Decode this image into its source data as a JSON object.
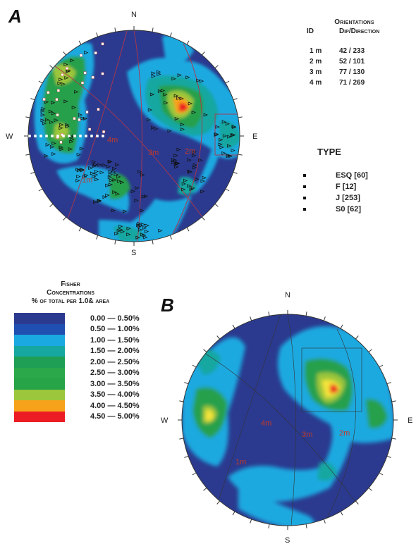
{
  "panels": [
    {
      "label": "A",
      "cardinals": {
        "n": "N",
        "e": "E",
        "s": "S",
        "w": "W"
      },
      "plane_labels": [
        "1m",
        "2m",
        "3m",
        "4m"
      ]
    },
    {
      "label": "B",
      "cardinals": {
        "n": "N",
        "e": "E",
        "s": "S",
        "w": "W"
      },
      "plane_labels": [
        "1m",
        "2m",
        "3m",
        "4m"
      ]
    }
  ],
  "orientations": {
    "title": "Orientations",
    "header": {
      "id": "ID",
      "dipdir": "Dip/Direction"
    },
    "rows": [
      {
        "id": "1 m",
        "value": "42 / 233"
      },
      {
        "id": "2 m",
        "value": "52 / 101"
      },
      {
        "id": "3 m",
        "value": "77 / 130"
      },
      {
        "id": "4 m",
        "value": "71 / 269"
      }
    ]
  },
  "type_legend": {
    "title": "TYPE",
    "items": [
      {
        "label": "ESQ [60]"
      },
      {
        "label": "F [12]"
      },
      {
        "label": "J [253]"
      },
      {
        "label": "S0 [62]"
      }
    ]
  },
  "fisher_legend": {
    "title_line1": "Fisher",
    "title_line2": "Concentrations",
    "title_line3": "% of total per 1.0& area",
    "classes": [
      {
        "label": "0.00 — 0.50%",
        "color": "#2b3a8f"
      },
      {
        "label": "0.50 — 1.00%",
        "color": "#1f4fb0"
      },
      {
        "label": "1.00 — 1.50%",
        "color": "#1aa9e0"
      },
      {
        "label": "1.50 — 2.00%",
        "color": "#16a7a0"
      },
      {
        "label": "2.00 — 2.50%",
        "color": "#1e9f55"
      },
      {
        "label": "2.50 — 3.00%",
        "color": "#2aa84a"
      },
      {
        "label": "3.00 — 3.50%",
        "color": "#27a348"
      },
      {
        "label": "3.50 — 4.00%",
        "color": "#9cc63b"
      },
      {
        "label": "4.00 — 4.50%",
        "color": "#f7a21b"
      },
      {
        "label": "4.50 — 5.00%",
        "color": "#ec1c24"
      }
    ]
  },
  "colors": {
    "outer": "#2b3a8f",
    "low": "#1f4fb0",
    "mid": "#1aa9e0",
    "teal": "#16a7a0",
    "green": "#25a04b",
    "yellowgreen": "#9cc63b",
    "orange": "#f7a21b",
    "red": "#ec1c24",
    "yellow": "#f5e43a",
    "plane": "#b0354a"
  }
}
